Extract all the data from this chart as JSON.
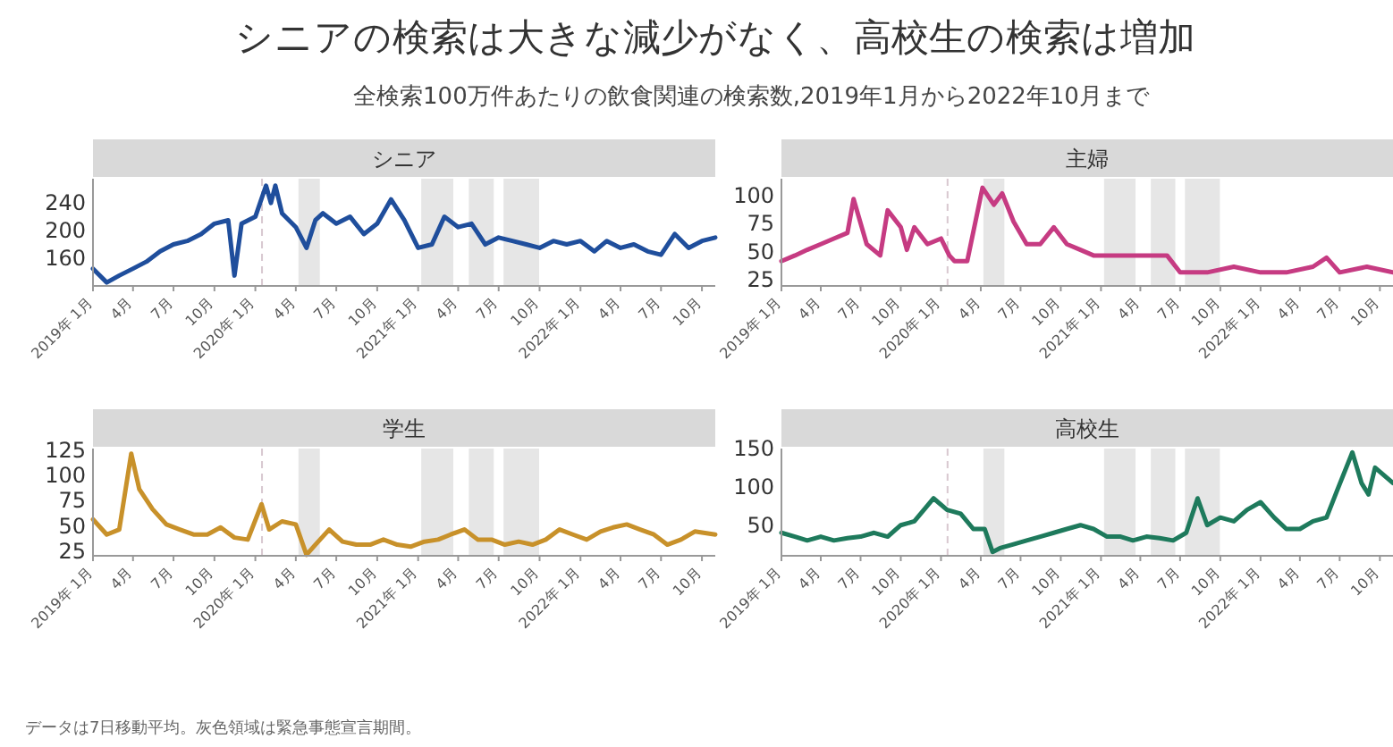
{
  "chart_data": [
    {
      "type": "other",
      "title": "シニアの検索は大きな減少がなく、高校生の検索は増加",
      "subtitle": "全検索100万件あたりの飲食関連の検索数,2019年1月から2022年10月まで",
      "annotations": [
        "データは7日移動平均。灰色領域は緊急事態宣言期間。"
      ]
    },
    {
      "type": "line",
      "title": "シニア",
      "xlim": [
        "2019-01-01",
        "2022-10-31"
      ],
      "ylim": [
        125,
        280
      ],
      "yticks": [
        160,
        200,
        240
      ],
      "grid": false,
      "marker": "none",
      "line_style": "solid",
      "xticks": [
        {
          "value": "2019-01",
          "label": "2019年 1月"
        },
        {
          "value": "2019-04",
          "label": "4月"
        },
        {
          "value": "2019-07",
          "label": "7月"
        },
        {
          "value": "2019-10",
          "label": "10月"
        },
        {
          "value": "2020-01",
          "label": "2020年 1月"
        },
        {
          "value": "2020-04",
          "label": "4月"
        },
        {
          "value": "2020-07",
          "label": "7月"
        },
        {
          "value": "2020-10",
          "label": "10月"
        },
        {
          "value": "2021-01",
          "label": "2021年 1月"
        },
        {
          "value": "2021-04",
          "label": "4月"
        },
        {
          "value": "2021-07",
          "label": "7月"
        },
        {
          "value": "2021-10",
          "label": "10月"
        },
        {
          "value": "2022-01",
          "label": "2022年 1月"
        },
        {
          "value": "2022-04",
          "label": "4月"
        },
        {
          "value": "2022-07",
          "label": "7月"
        },
        {
          "value": "2022-10",
          "label": "10月"
        }
      ],
      "bands": [
        {
          "axis": "x",
          "from": "2020-04-07",
          "to": "2020-05-25",
          "color": "#e6e6e6"
        },
        {
          "axis": "x",
          "from": "2021-01-08",
          "to": "2021-03-21",
          "color": "#e6e6e6"
        },
        {
          "axis": "x",
          "from": "2021-04-25",
          "to": "2021-06-20",
          "color": "#e6e6e6"
        },
        {
          "axis": "x",
          "from": "2021-07-12",
          "to": "2021-09-30",
          "color": "#e6e6e6"
        }
      ],
      "ref_lines": [
        {
          "axis": "x",
          "value": "2020-01-16",
          "color": "#d8c8d0",
          "line_style": "dashed"
        }
      ],
      "series": [
        {
          "color": "#1f4e9c",
          "x": [
            "2019-01-01",
            "2019-02-01",
            "2019-03-01",
            "2019-04-01",
            "2019-05-01",
            "2019-06-01",
            "2019-07-01",
            "2019-08-01",
            "2019-09-01",
            "2019-10-01",
            "2019-11-01",
            "2019-11-15",
            "2019-12-01",
            "2020-01-01",
            "2020-01-25",
            "2020-02-05",
            "2020-02-15",
            "2020-03-01",
            "2020-04-01",
            "2020-04-25",
            "2020-05-15",
            "2020-06-01",
            "2020-07-01",
            "2020-08-01",
            "2020-09-01",
            "2020-10-01",
            "2020-11-01",
            "2020-12-01",
            "2021-01-01",
            "2021-02-01",
            "2021-03-01",
            "2021-04-01",
            "2021-05-01",
            "2021-06-01",
            "2021-07-01",
            "2021-08-01",
            "2021-09-01",
            "2021-10-01",
            "2021-11-01",
            "2021-12-01",
            "2022-01-01",
            "2022-02-01",
            "2022-03-01",
            "2022-04-01",
            "2022-05-01",
            "2022-06-01",
            "2022-07-01",
            "2022-08-01",
            "2022-09-01",
            "2022-10-01",
            "2022-10-31"
          ],
          "values": [
            150,
            130,
            140,
            150,
            160,
            175,
            185,
            190,
            200,
            215,
            220,
            140,
            215,
            225,
            270,
            245,
            270,
            230,
            210,
            180,
            220,
            230,
            215,
            225,
            200,
            215,
            250,
            220,
            180,
            185,
            225,
            210,
            215,
            185,
            195,
            190,
            185,
            180,
            190,
            185,
            190,
            175,
            190,
            180,
            185,
            175,
            170,
            200,
            180,
            190,
            195
          ]
        }
      ]
    },
    {
      "type": "line",
      "title": "主婦",
      "xlim": [
        "2019-01-01",
        "2022-10-31"
      ],
      "ylim": [
        23,
        118
      ],
      "yticks": [
        25,
        50,
        75,
        100
      ],
      "grid": false,
      "marker": "none",
      "line_style": "solid",
      "xticks": [
        {
          "value": "2019-01",
          "label": "2019年 1月"
        },
        {
          "value": "2019-04",
          "label": "4月"
        },
        {
          "value": "2019-07",
          "label": "7月"
        },
        {
          "value": "2019-10",
          "label": "10月"
        },
        {
          "value": "2020-01",
          "label": "2020年 1月"
        },
        {
          "value": "2020-04",
          "label": "4月"
        },
        {
          "value": "2020-07",
          "label": "7月"
        },
        {
          "value": "2020-10",
          "label": "10月"
        },
        {
          "value": "2021-01",
          "label": "2021年 1月"
        },
        {
          "value": "2021-04",
          "label": "4月"
        },
        {
          "value": "2021-07",
          "label": "7月"
        },
        {
          "value": "2021-10",
          "label": "10月"
        },
        {
          "value": "2022-01",
          "label": "2022年 1月"
        },
        {
          "value": "2022-04",
          "label": "4月"
        },
        {
          "value": "2022-07",
          "label": "7月"
        },
        {
          "value": "2022-10",
          "label": "10月"
        }
      ],
      "bands": [
        {
          "axis": "x",
          "from": "2020-04-07",
          "to": "2020-05-25",
          "color": "#e6e6e6"
        },
        {
          "axis": "x",
          "from": "2021-01-08",
          "to": "2021-03-21",
          "color": "#e6e6e6"
        },
        {
          "axis": "x",
          "from": "2021-04-25",
          "to": "2021-06-20",
          "color": "#e6e6e6"
        },
        {
          "axis": "x",
          "from": "2021-07-12",
          "to": "2021-09-30",
          "color": "#e6e6e6"
        }
      ],
      "ref_lines": [
        {
          "axis": "x",
          "value": "2020-01-16",
          "color": "#d8c8d0",
          "line_style": "dashed"
        }
      ],
      "series": [
        {
          "color": "#c63b82",
          "x": [
            "2019-01-01",
            "2019-02-01",
            "2019-03-01",
            "2019-04-01",
            "2019-05-01",
            "2019-06-01",
            "2019-06-15",
            "2019-07-15",
            "2019-08-15",
            "2019-09-01",
            "2019-10-01",
            "2019-10-15",
            "2019-11-01",
            "2019-12-01",
            "2020-01-01",
            "2020-01-20",
            "2020-02-01",
            "2020-03-01",
            "2020-04-05",
            "2020-05-01",
            "2020-05-20",
            "2020-06-15",
            "2020-07-15",
            "2020-08-15",
            "2020-09-15",
            "2020-10-15",
            "2020-11-15",
            "2020-12-15",
            "2021-02-01",
            "2021-04-01",
            "2021-06-01",
            "2021-07-01",
            "2021-09-01",
            "2021-11-01",
            "2022-01-01",
            "2022-03-01",
            "2022-05-01",
            "2022-06-01",
            "2022-07-01",
            "2022-09-01",
            "2022-10-31"
          ],
          "values": [
            45,
            50,
            55,
            60,
            65,
            70,
            100,
            60,
            50,
            90,
            75,
            55,
            75,
            60,
            65,
            50,
            45,
            45,
            110,
            95,
            105,
            80,
            60,
            60,
            75,
            60,
            55,
            50,
            50,
            50,
            50,
            35,
            35,
            40,
            35,
            35,
            40,
            48,
            35,
            40,
            35
          ]
        }
      ]
    },
    {
      "type": "line",
      "title": "学生",
      "xlim": [
        "2019-01-01",
        "2022-10-31"
      ],
      "ylim": [
        24,
        130
      ],
      "yticks": [
        25,
        50,
        75,
        100,
        125
      ],
      "grid": false,
      "marker": "none",
      "line_style": "solid",
      "xticks": [
        {
          "value": "2019-01",
          "label": "2019年 1月"
        },
        {
          "value": "2019-04",
          "label": "4月"
        },
        {
          "value": "2019-07",
          "label": "7月"
        },
        {
          "value": "2019-10",
          "label": "10月"
        },
        {
          "value": "2020-01",
          "label": "2020年 1月"
        },
        {
          "value": "2020-04",
          "label": "4月"
        },
        {
          "value": "2020-07",
          "label": "7月"
        },
        {
          "value": "2020-10",
          "label": "10月"
        },
        {
          "value": "2021-01",
          "label": "2021年 1月"
        },
        {
          "value": "2021-04",
          "label": "4月"
        },
        {
          "value": "2021-07",
          "label": "7月"
        },
        {
          "value": "2021-10",
          "label": "10月"
        },
        {
          "value": "2022-01",
          "label": "2022年 1月"
        },
        {
          "value": "2022-04",
          "label": "4月"
        },
        {
          "value": "2022-07",
          "label": "7月"
        },
        {
          "value": "2022-10",
          "label": "10月"
        }
      ],
      "bands": [
        {
          "axis": "x",
          "from": "2020-04-07",
          "to": "2020-05-25",
          "color": "#e6e6e6"
        },
        {
          "axis": "x",
          "from": "2021-01-08",
          "to": "2021-03-21",
          "color": "#e6e6e6"
        },
        {
          "axis": "x",
          "from": "2021-04-25",
          "to": "2021-06-20",
          "color": "#e6e6e6"
        },
        {
          "axis": "x",
          "from": "2021-07-12",
          "to": "2021-09-30",
          "color": "#e6e6e6"
        }
      ],
      "ref_lines": [
        {
          "axis": "x",
          "value": "2020-01-16",
          "color": "#d8c8d0",
          "line_style": "dashed"
        }
      ],
      "series": [
        {
          "color": "#c8912a",
          "x": [
            "2019-01-01",
            "2019-02-01",
            "2019-03-01",
            "2019-03-28",
            "2019-04-15",
            "2019-05-15",
            "2019-06-15",
            "2019-07-15",
            "2019-08-15",
            "2019-09-15",
            "2019-10-15",
            "2019-11-15",
            "2019-12-15",
            "2020-01-15",
            "2020-02-01",
            "2020-03-01",
            "2020-04-01",
            "2020-04-25",
            "2020-05-15",
            "2020-06-15",
            "2020-07-15",
            "2020-08-15",
            "2020-09-15",
            "2020-10-15",
            "2020-11-15",
            "2020-12-15",
            "2021-01-15",
            "2021-02-15",
            "2021-03-15",
            "2021-04-15",
            "2021-05-15",
            "2021-06-15",
            "2021-07-15",
            "2021-08-15",
            "2021-09-15",
            "2021-10-15",
            "2021-11-15",
            "2021-12-15",
            "2022-01-15",
            "2022-02-15",
            "2022-03-15",
            "2022-04-15",
            "2022-05-15",
            "2022-06-15",
            "2022-07-15",
            "2022-08-15",
            "2022-09-15",
            "2022-10-31"
          ],
          "values": [
            60,
            45,
            50,
            125,
            90,
            70,
            55,
            50,
            45,
            45,
            52,
            42,
            40,
            75,
            50,
            58,
            55,
            25,
            35,
            50,
            38,
            35,
            35,
            40,
            35,
            33,
            38,
            40,
            45,
            50,
            40,
            40,
            35,
            38,
            35,
            40,
            50,
            45,
            40,
            48,
            52,
            55,
            50,
            45,
            35,
            40,
            48,
            45
          ]
        }
      ]
    },
    {
      "type": "line",
      "title": "高校生",
      "xlim": [
        "2019-01-01",
        "2022-10-31"
      ],
      "ylim": [
        15,
        155
      ],
      "yticks": [
        50,
        100,
        150
      ],
      "grid": false,
      "marker": "none",
      "line_style": "solid",
      "xticks": [
        {
          "value": "2019-01",
          "label": "2019年 1月"
        },
        {
          "value": "2019-04",
          "label": "4月"
        },
        {
          "value": "2019-07",
          "label": "7月"
        },
        {
          "value": "2019-10",
          "label": "10月"
        },
        {
          "value": "2020-01",
          "label": "2020年 1月"
        },
        {
          "value": "2020-04",
          "label": "4月"
        },
        {
          "value": "2020-07",
          "label": "7月"
        },
        {
          "value": "2020-10",
          "label": "10月"
        },
        {
          "value": "2021-01",
          "label": "2021年 1月"
        },
        {
          "value": "2021-04",
          "label": "4月"
        },
        {
          "value": "2021-07",
          "label": "7月"
        },
        {
          "value": "2021-10",
          "label": "10月"
        },
        {
          "value": "2022-01",
          "label": "2022年 1月"
        },
        {
          "value": "2022-04",
          "label": "4月"
        },
        {
          "value": "2022-07",
          "label": "7月"
        },
        {
          "value": "2022-10",
          "label": "10月"
        }
      ],
      "bands": [
        {
          "axis": "x",
          "from": "2020-04-07",
          "to": "2020-05-25",
          "color": "#e6e6e6"
        },
        {
          "axis": "x",
          "from": "2021-01-08",
          "to": "2021-03-21",
          "color": "#e6e6e6"
        },
        {
          "axis": "x",
          "from": "2021-04-25",
          "to": "2021-06-20",
          "color": "#e6e6e6"
        },
        {
          "axis": "x",
          "from": "2021-07-12",
          "to": "2021-09-30",
          "color": "#e6e6e6"
        }
      ],
      "ref_lines": [
        {
          "axis": "x",
          "value": "2020-01-16",
          "color": "#d8c8d0",
          "line_style": "dashed"
        }
      ],
      "series": [
        {
          "color": "#1e7a5c",
          "x": [
            "2019-01-01",
            "2019-02-01",
            "2019-03-01",
            "2019-04-01",
            "2019-05-01",
            "2019-06-01",
            "2019-07-01",
            "2019-08-01",
            "2019-09-01",
            "2019-10-01",
            "2019-11-01",
            "2019-12-15",
            "2020-01-15",
            "2020-02-15",
            "2020-03-15",
            "2020-04-10",
            "2020-04-28",
            "2020-05-15",
            "2020-06-15",
            "2020-07-15",
            "2020-08-15",
            "2020-09-15",
            "2020-10-15",
            "2020-11-15",
            "2020-12-15",
            "2021-01-15",
            "2021-02-15",
            "2021-03-15",
            "2021-04-15",
            "2021-05-15",
            "2021-06-15",
            "2021-07-15",
            "2021-08-10",
            "2021-09-01",
            "2021-10-01",
            "2021-11-01",
            "2021-12-01",
            "2022-01-01",
            "2022-02-01",
            "2022-03-01",
            "2022-04-01",
            "2022-05-01",
            "2022-06-01",
            "2022-06-25",
            "2022-07-30",
            "2022-08-20",
            "2022-09-05",
            "2022-09-20",
            "2022-10-31"
          ],
          "values": [
            45,
            40,
            35,
            40,
            35,
            38,
            40,
            45,
            40,
            55,
            60,
            90,
            75,
            70,
            50,
            50,
            20,
            25,
            30,
            35,
            40,
            45,
            50,
            55,
            50,
            40,
            40,
            35,
            40,
            38,
            35,
            45,
            90,
            55,
            65,
            60,
            75,
            85,
            65,
            50,
            50,
            60,
            65,
            100,
            150,
            110,
            95,
            130,
            110
          ]
        }
      ]
    }
  ]
}
